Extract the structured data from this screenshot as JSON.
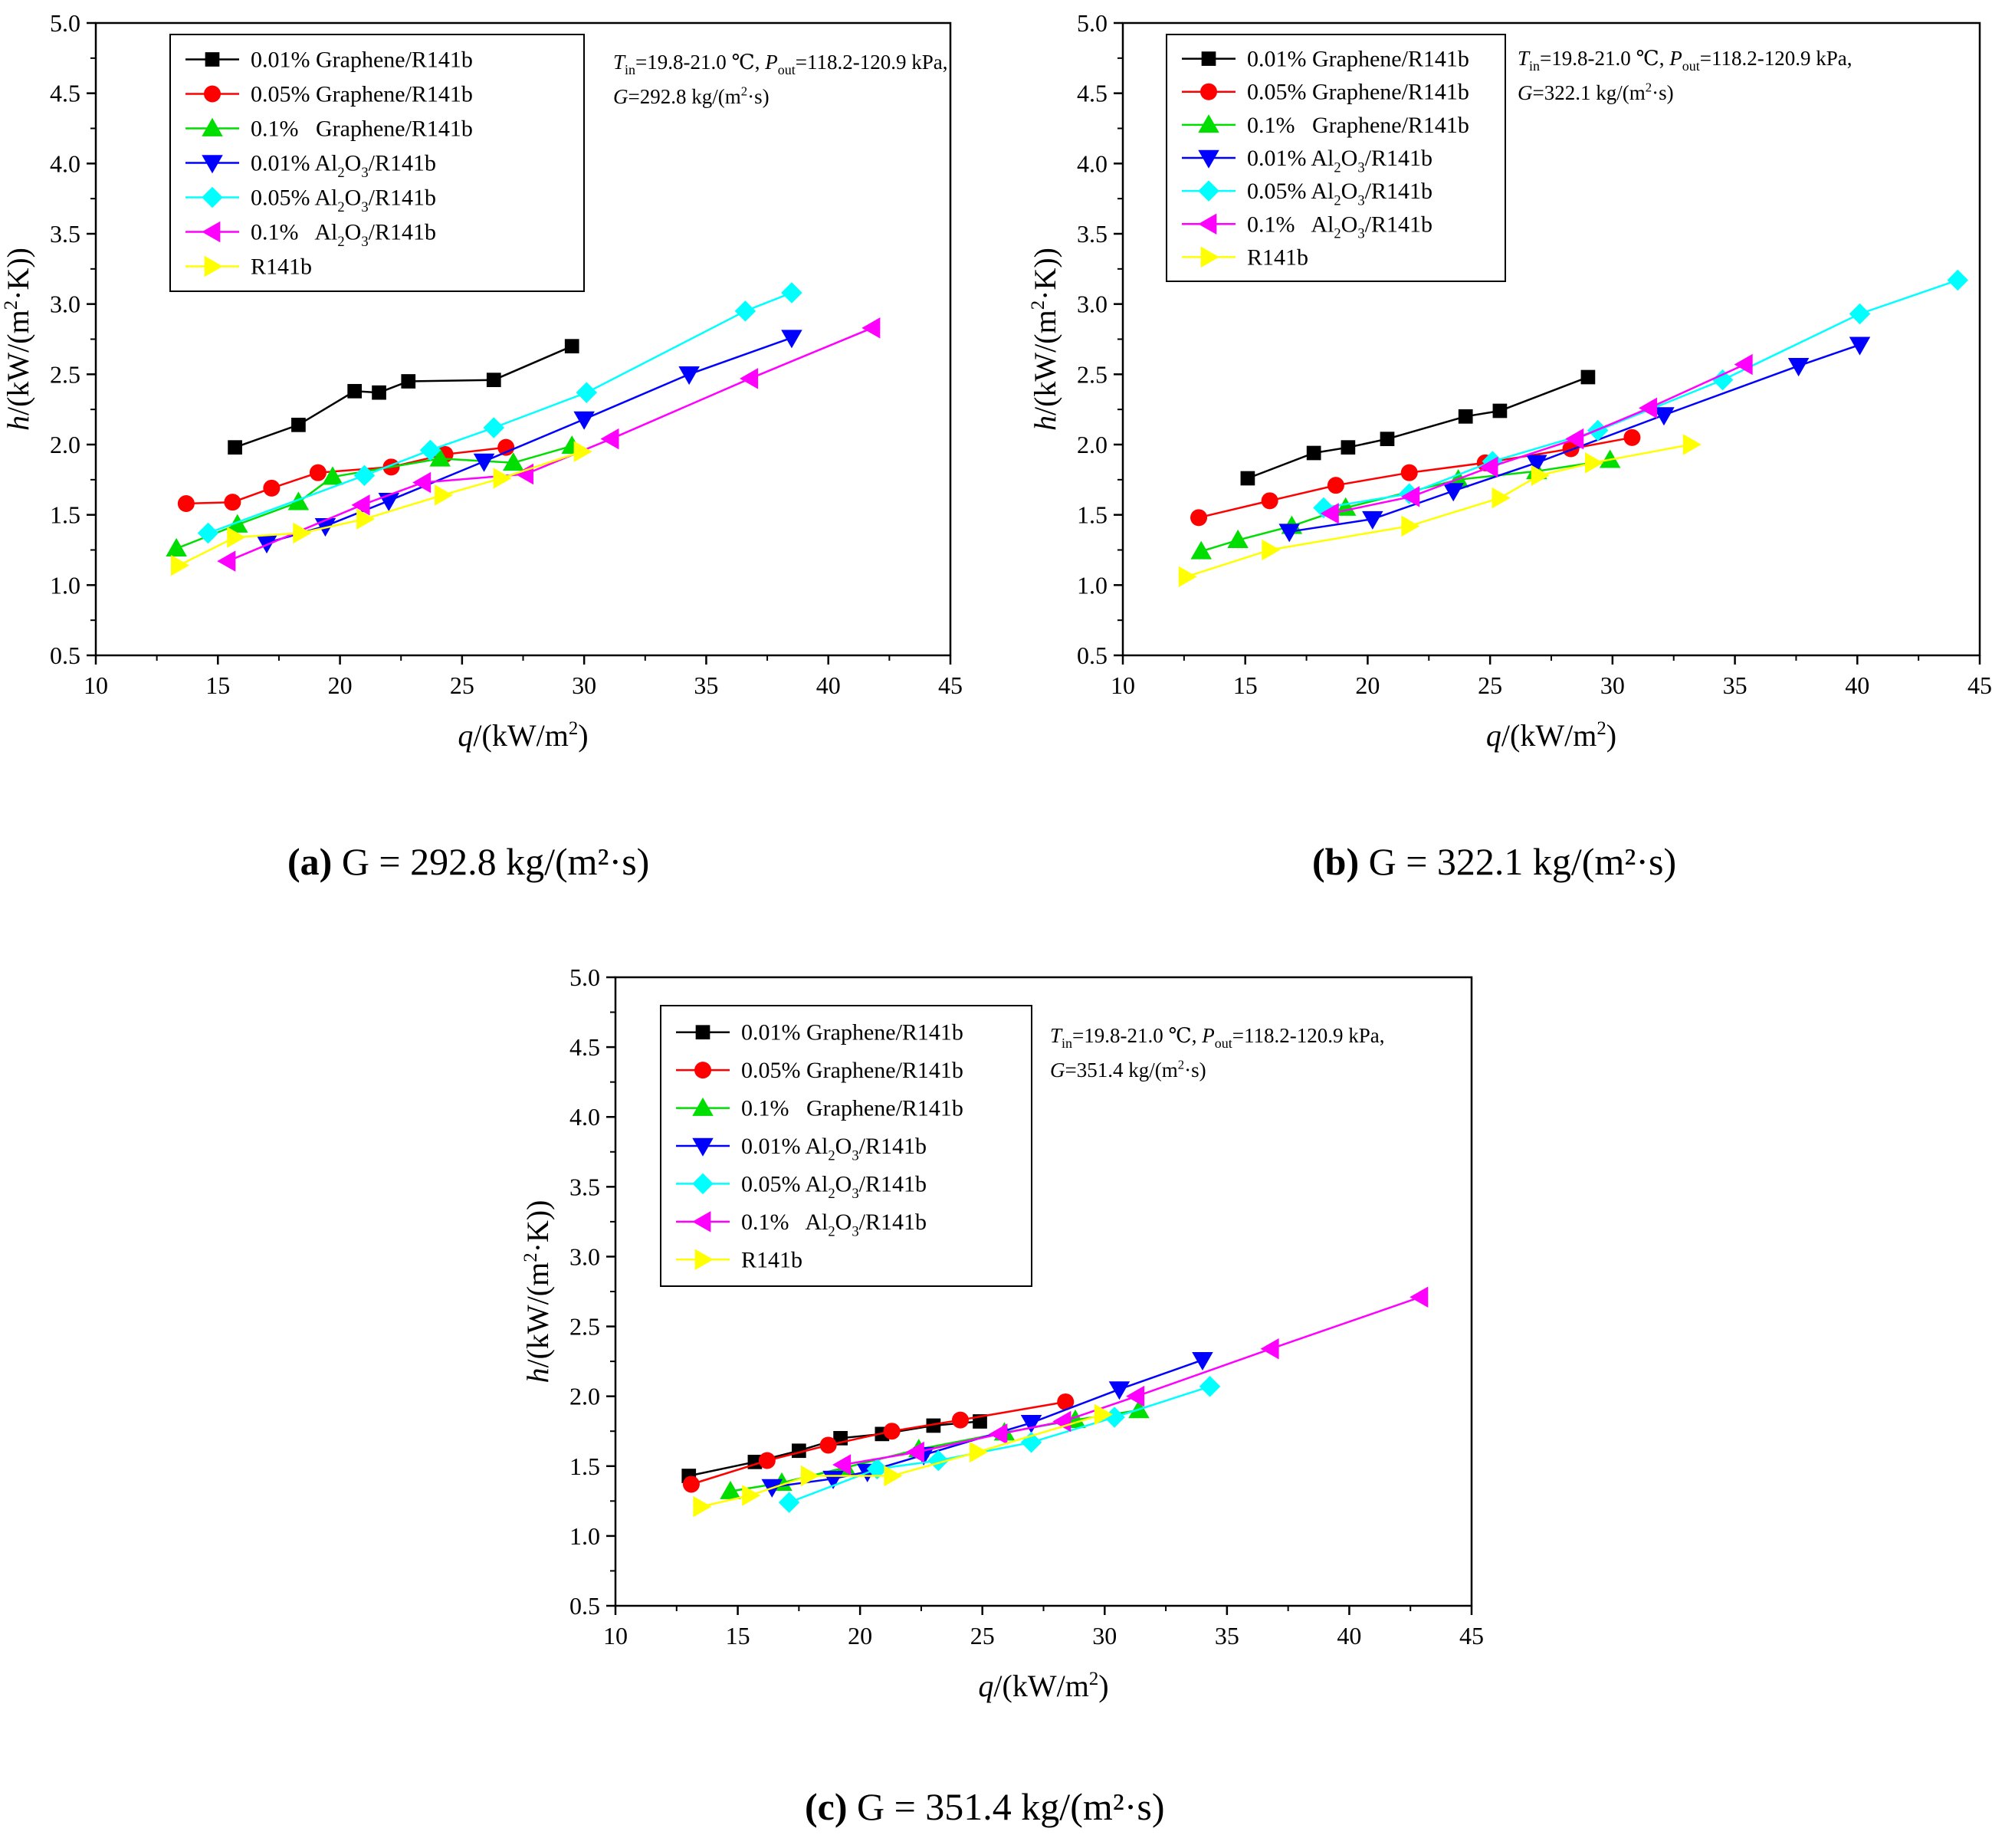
{
  "series_meta": [
    {
      "key": "g001",
      "label": "0.01% Graphene/R141b",
      "color": "#000000",
      "marker": "square"
    },
    {
      "key": "g005",
      "label": "0.05% Graphene/R141b",
      "color": "#ff0000",
      "marker": "circle"
    },
    {
      "key": "g01",
      "label": "0.1%   Graphene/R141b",
      "color": "#00dd00",
      "marker": "triangle-up"
    },
    {
      "key": "a001",
      "label": "0.01% Al₂O₃/R141b",
      "color": "#0000ff",
      "marker": "triangle-down"
    },
    {
      "key": "a005",
      "label": "0.05% Al₂O₃/R141b",
      "color": "#00ffff",
      "marker": "diamond"
    },
    {
      "key": "a01",
      "label": "0.1%   Al₂O₃/R141b",
      "color": "#ff00ff",
      "marker": "triangle-left"
    },
    {
      "key": "r141b",
      "label": "R141b",
      "color": "#ffff00",
      "marker": "triangle-right"
    }
  ],
  "chart_data": [
    {
      "id": "a",
      "type": "line",
      "caption_letter": "(a)",
      "caption_text": " G = 292.8 kg/(m²·s)",
      "conditions": {
        "line1": "Tin=19.8-21.0 ℃, Pout=118.2-120.9 kPa,",
        "line2": "G=292.8 kg/(m²·s)"
      },
      "xlabel": "q/(kW/m²)",
      "ylabel": "h/(kW/(m²·K))",
      "xlim": [
        10,
        45
      ],
      "ylim": [
        0.5,
        5.0
      ],
      "xticks": [
        "10",
        "15",
        "20",
        "25",
        "30",
        "35",
        "40",
        "45"
      ],
      "yticks": [
        "0.5",
        "1.0",
        "1.5",
        "2.0",
        "2.5",
        "3.0",
        "3.5",
        "4.0",
        "4.5",
        "5.0"
      ],
      "series": [
        {
          "key": "g001",
          "x": [
            15.7,
            18.3,
            20.6,
            21.6,
            22.8,
            26.3,
            29.5
          ],
          "y": [
            1.98,
            2.14,
            2.38,
            2.37,
            2.45,
            2.46,
            2.7
          ]
        },
        {
          "key": "g005",
          "x": [
            13.7,
            15.6,
            17.2,
            19.1,
            22.1,
            24.3,
            26.8
          ],
          "y": [
            1.58,
            1.59,
            1.69,
            1.8,
            1.84,
            1.93,
            1.98
          ]
        },
        {
          "key": "g01",
          "x": [
            13.3,
            15.8,
            18.3,
            19.7,
            24.1,
            27.1,
            29.5
          ],
          "y": [
            1.26,
            1.43,
            1.59,
            1.77,
            1.9,
            1.87,
            1.99
          ]
        },
        {
          "key": "a001",
          "x": [
            17.0,
            19.4,
            22.0,
            25.9,
            30.0,
            34.3,
            38.5
          ],
          "y": [
            1.3,
            1.42,
            1.6,
            1.88,
            2.18,
            2.5,
            2.76
          ]
        },
        {
          "key": "a005",
          "x": [
            14.6,
            21.0,
            23.7,
            26.3,
            30.1,
            36.6,
            38.5
          ],
          "y": [
            1.37,
            1.78,
            1.96,
            2.12,
            2.37,
            2.95,
            3.08
          ]
        },
        {
          "key": "a01",
          "x": [
            15.4,
            20.9,
            23.4,
            27.6,
            31.1,
            36.8,
            41.8
          ],
          "y": [
            1.17,
            1.57,
            1.73,
            1.79,
            2.04,
            2.47,
            2.83
          ]
        },
        {
          "key": "r141b",
          "x": [
            13.4,
            15.7,
            18.4,
            21.0,
            24.2,
            26.6,
            29.9
          ],
          "y": [
            1.14,
            1.34,
            1.37,
            1.47,
            1.64,
            1.76,
            1.95
          ]
        }
      ]
    },
    {
      "id": "b",
      "type": "line",
      "caption_letter": "(b)",
      "caption_text": " G = 322.1 kg/(m²·s)",
      "conditions": {
        "line1": "Tin=19.8-21.0 ℃, Pout=118.2-120.9 kPa,",
        "line2": "G=322.1 kg/(m²·s)"
      },
      "xlabel": "q/(kW/m²)",
      "ylabel": "h/(kW/(m²·K))",
      "xlim": [
        10,
        45
      ],
      "ylim": [
        0.5,
        5.0
      ],
      "xticks": [
        "10",
        "15",
        "20",
        "25",
        "30",
        "35",
        "40",
        "45"
      ],
      "yticks": [
        "0.5",
        "1.0",
        "1.5",
        "2.0",
        "2.5",
        "3.0",
        "3.5",
        "4.0",
        "4.5",
        "5.0"
      ],
      "series": [
        {
          "key": "g001",
          "x": [
            15.1,
            17.8,
            19.2,
            20.8,
            24.0,
            25.4,
            29.0
          ],
          "y": [
            1.76,
            1.94,
            1.98,
            2.04,
            2.2,
            2.24,
            2.48
          ]
        },
        {
          "key": "g005",
          "x": [
            13.1,
            16.0,
            18.7,
            21.7,
            24.8,
            28.3,
            30.8
          ],
          "y": [
            1.48,
            1.6,
            1.71,
            1.8,
            1.87,
            1.97,
            2.05
          ]
        },
        {
          "key": "g01",
          "x": [
            13.2,
            14.7,
            16.9,
            19.1,
            23.7,
            26.9,
            29.9
          ],
          "y": [
            1.24,
            1.32,
            1.42,
            1.55,
            1.75,
            1.81,
            1.89
          ]
        },
        {
          "key": "a001",
          "x": [
            16.8,
            20.2,
            23.5,
            26.9,
            32.1,
            37.6,
            40.1
          ],
          "y": [
            1.38,
            1.47,
            1.67,
            1.87,
            2.21,
            2.56,
            2.71
          ]
        },
        {
          "key": "a005",
          "x": [
            18.2,
            21.7,
            25.1,
            29.4,
            34.5,
            40.1,
            44.1
          ],
          "y": [
            1.55,
            1.65,
            1.88,
            2.1,
            2.46,
            2.93,
            3.17
          ]
        },
        {
          "key": "a01",
          "x": [
            18.5,
            21.8,
            25.0,
            28.5,
            31.5,
            35.4
          ],
          "y": [
            1.51,
            1.63,
            1.84,
            2.04,
            2.26,
            2.57
          ]
        },
        {
          "key": "r141b",
          "x": [
            12.6,
            16.0,
            21.7,
            25.4,
            27.0,
            29.2,
            33.2
          ],
          "y": [
            1.06,
            1.25,
            1.42,
            1.62,
            1.78,
            1.87,
            2.0
          ]
        }
      ]
    },
    {
      "id": "c",
      "type": "line",
      "caption_letter": "(c)",
      "caption_text": " G = 351.4 kg/(m²·s)",
      "conditions": {
        "line1": "Tin=19.8-21.0 ℃, Pout=118.2-120.9 kPa,",
        "line2": "G=351.4 kg/(m²·s)"
      },
      "xlabel": "q/(kW/m²)",
      "ylabel": "h/(kW/(m²·K))",
      "xlim": [
        10,
        45
      ],
      "ylim": [
        0.5,
        5.0
      ],
      "xticks": [
        "10",
        "15",
        "20",
        "25",
        "30",
        "35",
        "40",
        "45"
      ],
      "yticks": [
        "0.5",
        "1.0",
        "1.5",
        "2.0",
        "2.5",
        "3.0",
        "3.5",
        "4.0",
        "4.5",
        "5.0"
      ],
      "series": [
        {
          "key": "g001",
          "x": [
            13.0,
            15.7,
            17.5,
            19.2,
            20.9,
            23.0,
            24.9
          ],
          "y": [
            1.43,
            1.53,
            1.61,
            1.7,
            1.73,
            1.79,
            1.82
          ]
        },
        {
          "key": "g005",
          "x": [
            13.1,
            16.2,
            18.7,
            21.3,
            24.1,
            28.4
          ],
          "y": [
            1.37,
            1.54,
            1.65,
            1.75,
            1.83,
            1.96
          ]
        },
        {
          "key": "g01",
          "x": [
            14.7,
            16.8,
            19.4,
            22.4,
            25.9,
            28.8,
            31.4
          ],
          "y": [
            1.32,
            1.38,
            1.49,
            1.62,
            1.74,
            1.83,
            1.9
          ]
        },
        {
          "key": "a001",
          "x": [
            16.4,
            18.9,
            20.3,
            22.6,
            27.0,
            30.6,
            34.0
          ],
          "y": [
            1.35,
            1.41,
            1.46,
            1.58,
            1.81,
            2.05,
            2.26
          ]
        },
        {
          "key": "a005",
          "x": [
            17.1,
            20.7,
            23.2,
            27.0,
            30.4,
            34.3
          ],
          "y": [
            1.24,
            1.48,
            1.54,
            1.67,
            1.85,
            2.07
          ]
        },
        {
          "key": "a01",
          "x": [
            19.3,
            22.3,
            25.7,
            28.3,
            31.3,
            36.8,
            42.9
          ],
          "y": [
            1.51,
            1.6,
            1.73,
            1.82,
            2.0,
            2.34,
            2.71
          ]
        },
        {
          "key": "r141b",
          "x": [
            13.5,
            15.5,
            17.9,
            21.3,
            24.8,
            29.9
          ],
          "y": [
            1.21,
            1.29,
            1.43,
            1.43,
            1.6,
            1.87
          ]
        }
      ]
    }
  ]
}
